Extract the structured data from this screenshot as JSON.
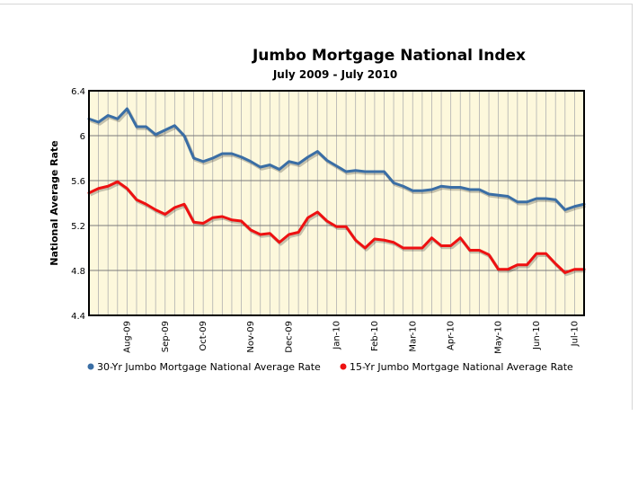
{
  "chart_data": {
    "type": "line",
    "title": "Jumbo Mortgage National Index",
    "subtitle": "July 2009 - July 2010",
    "ylabel": "National Average Rate",
    "xlabel": "",
    "ylim": [
      4.4,
      6.4
    ],
    "yticks": [
      "4.4",
      "4.8",
      "5.2",
      "5.6",
      "6",
      "6.4"
    ],
    "grid": true,
    "legend_position": "bottom",
    "month_ticks": [
      {
        "label": "Aug-09",
        "week": 4
      },
      {
        "label": "Sep-09",
        "week": 8
      },
      {
        "label": "Oct-09",
        "week": 12
      },
      {
        "label": "Nov-09",
        "week": 17
      },
      {
        "label": "Dec-09",
        "week": 21
      },
      {
        "label": "Jan-10",
        "week": 26
      },
      {
        "label": "Feb-10",
        "week": 30
      },
      {
        "label": "Mar-10",
        "week": 34
      },
      {
        "label": "Apr-10",
        "week": 38
      },
      {
        "label": "May-10",
        "week": 43
      },
      {
        "label": "Jun-10",
        "week": 47
      },
      {
        "label": "Jul-10",
        "week": 51
      }
    ],
    "series": [
      {
        "name": "30-Yr Jumbo Mortgage National Average Rate",
        "color": "#3a6ea5",
        "values": [
          6.15,
          6.12,
          6.18,
          6.15,
          6.24,
          6.08,
          6.08,
          6.01,
          6.05,
          6.09,
          6.0,
          5.8,
          5.77,
          5.8,
          5.84,
          5.84,
          5.81,
          5.77,
          5.72,
          5.74,
          5.7,
          5.77,
          5.75,
          5.81,
          5.86,
          5.78,
          5.73,
          5.68,
          5.69,
          5.68,
          5.68,
          5.68,
          5.58,
          5.55,
          5.51,
          5.51,
          5.52,
          5.55,
          5.54,
          5.54,
          5.52,
          5.52,
          5.48,
          5.47,
          5.46,
          5.41,
          5.41,
          5.44,
          5.44,
          5.43,
          5.34,
          5.37,
          5.39
        ]
      },
      {
        "name": "15-Yr Jumbo Mortgage National Average Rate",
        "color": "#ee1111",
        "values": [
          5.49,
          5.53,
          5.55,
          5.59,
          5.53,
          5.43,
          5.39,
          5.34,
          5.3,
          5.36,
          5.39,
          5.23,
          5.22,
          5.27,
          5.28,
          5.25,
          5.24,
          5.16,
          5.12,
          5.13,
          5.05,
          5.12,
          5.14,
          5.27,
          5.32,
          5.24,
          5.19,
          5.19,
          5.07,
          5.0,
          5.08,
          5.07,
          5.05,
          5.0,
          5.0,
          5.0,
          5.09,
          5.02,
          5.02,
          5.09,
          4.98,
          4.98,
          4.94,
          4.81,
          4.81,
          4.85,
          4.85,
          4.95,
          4.95,
          4.86,
          4.78,
          4.81,
          4.81
        ]
      }
    ]
  }
}
